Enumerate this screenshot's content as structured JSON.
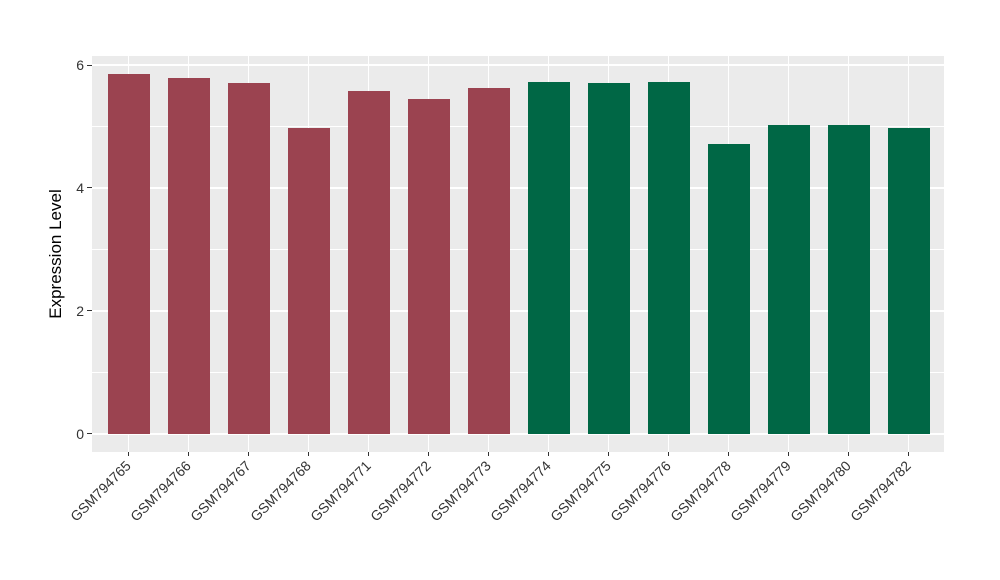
{
  "chart_data": {
    "type": "bar",
    "title": "",
    "xlabel": "",
    "ylabel": "Expression Level",
    "categories": [
      "GSM794765",
      "GSM794766",
      "GSM794767",
      "GSM794768",
      "GSM794771",
      "GSM794772",
      "GSM794773",
      "GSM794774",
      "GSM794775",
      "GSM794776",
      "GSM794778",
      "GSM794779",
      "GSM794780",
      "GSM794782"
    ],
    "values": [
      5.86,
      5.79,
      5.71,
      4.97,
      5.58,
      5.45,
      5.63,
      5.72,
      5.7,
      5.73,
      4.71,
      5.02,
      5.03,
      4.98
    ],
    "bar_colors": [
      "#9B4350",
      "#9B4350",
      "#9B4350",
      "#9B4350",
      "#9B4350",
      "#9B4350",
      "#9B4350",
      "#006745",
      "#006745",
      "#006745",
      "#006745",
      "#006745",
      "#006745",
      "#006745"
    ],
    "group_colors": {
      "first_group": "#9B4350",
      "second_group": "#006745"
    },
    "ytick_labels": [
      "0",
      "2",
      "4",
      "6"
    ],
    "yticks": [
      0,
      2,
      4,
      6
    ],
    "minor_yticks": [
      1,
      3,
      5
    ],
    "ylim": [
      -0.3,
      6.15
    ],
    "grid": "on",
    "legend_position": "none",
    "panel_bg": "#EBEBEB",
    "gridline_color": "#FFFFFF",
    "figure_bg": "#FFFFFF",
    "tick_color": "#333333"
  }
}
